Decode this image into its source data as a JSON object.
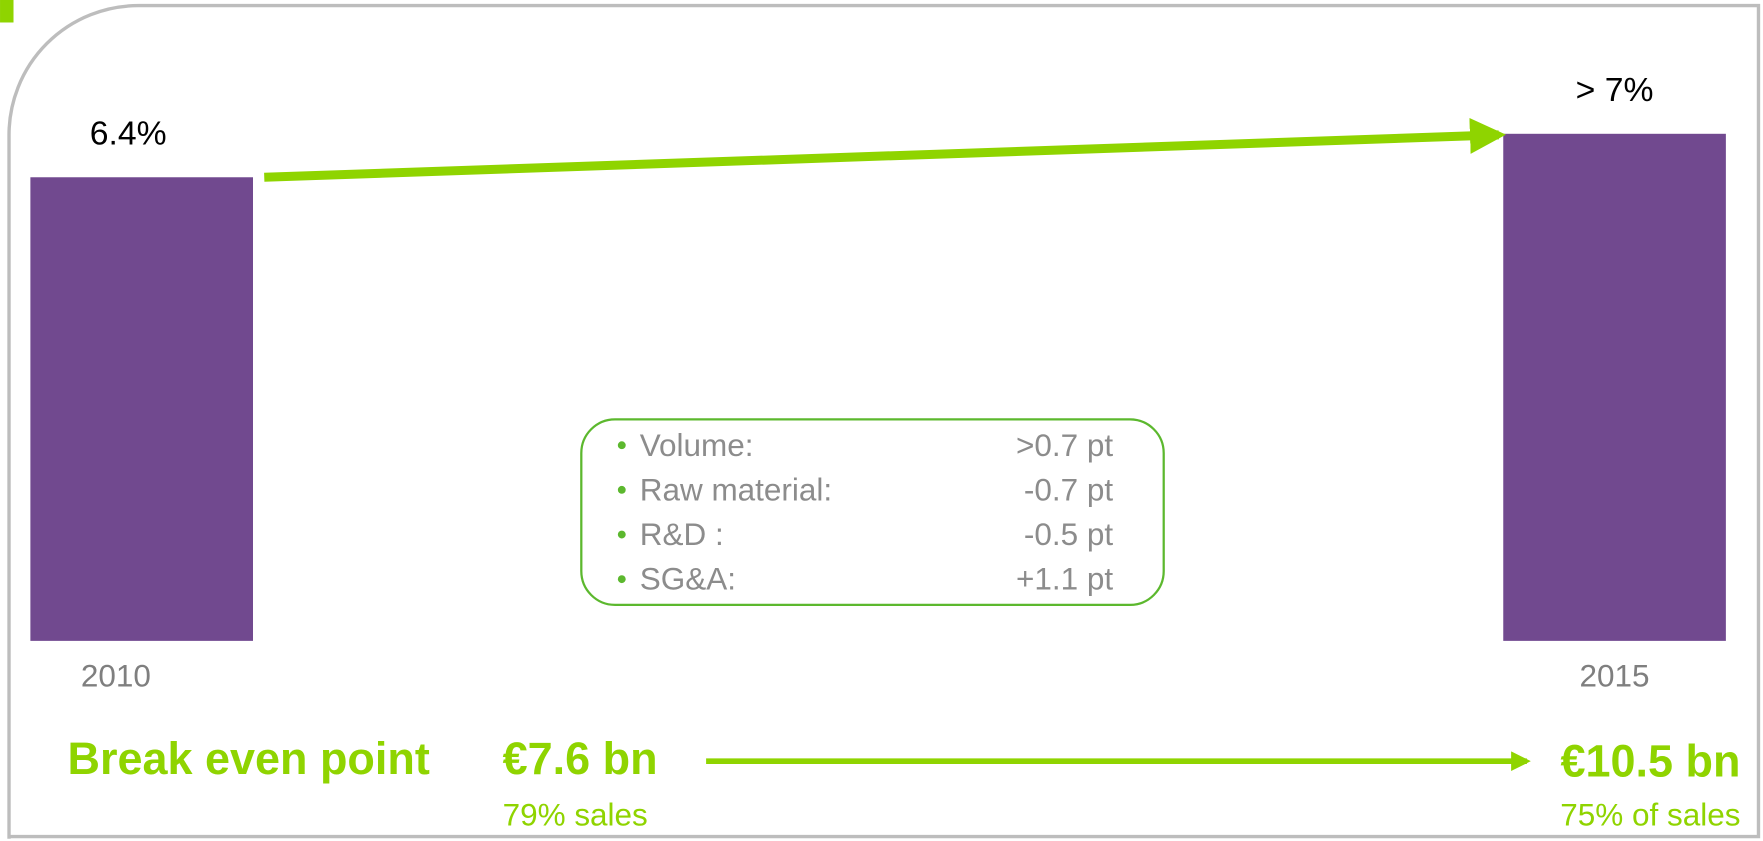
{
  "chart_data": {
    "type": "bar",
    "categories": [
      "2010",
      "2015"
    ],
    "values": [
      6.4,
      7
    ],
    "value_labels": [
      "6.4%",
      "> 7%"
    ],
    "color": "#71498f",
    "arrow_color": "#8fd400"
  },
  "drivers": [
    {
      "label": "Volume:",
      "value": ">0.7 pt"
    },
    {
      "label": "Raw material:",
      "value": "-0.7 pt"
    },
    {
      "label": "R&D :",
      "value": "-0.5 pt"
    },
    {
      "label": "SG&A:",
      "value": "+1.1 pt"
    }
  ],
  "breakeven": {
    "label": "Break even point",
    "from": "€7.6 bn",
    "from_note": "79% sales",
    "to": "€10.5 bn",
    "to_note": "75% of sales"
  }
}
